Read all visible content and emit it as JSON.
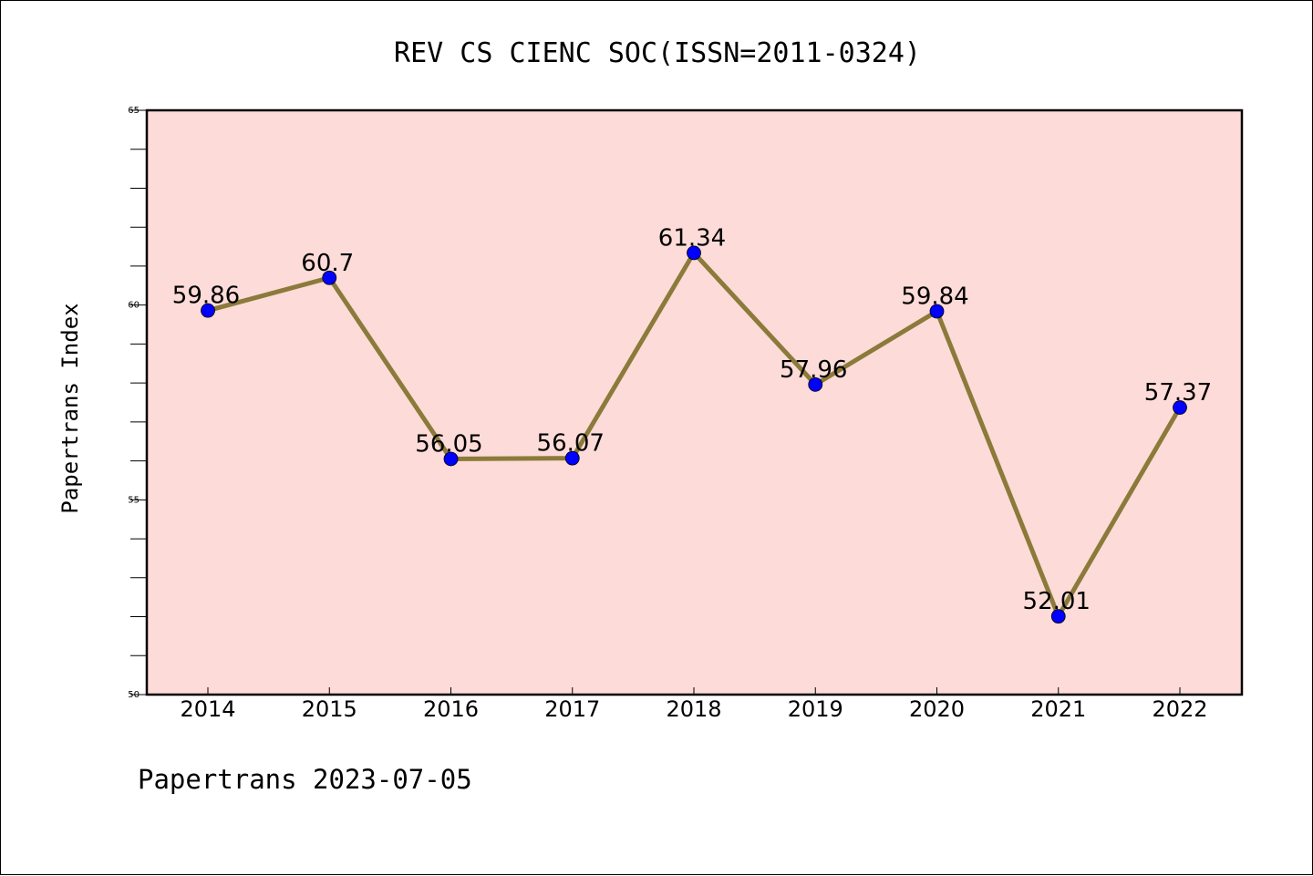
{
  "chart_data": {
    "type": "line",
    "title": "REV CS CIENC SOC(ISSN=2011-0324)",
    "ylabel": "Papertrans Index",
    "xlabel": "",
    "footer": "Papertrans 2023-07-05",
    "categories": [
      "2014",
      "2015",
      "2016",
      "2017",
      "2018",
      "2019",
      "2020",
      "2021",
      "2022"
    ],
    "values": [
      59.86,
      60.7,
      56.05,
      56.07,
      61.34,
      57.96,
      59.84,
      52.01,
      57.37
    ],
    "data_labels": [
      "59.86",
      "60.7",
      "56.05",
      "56.07",
      "61.34",
      "57.96",
      "59.84",
      "52.01",
      "57.37"
    ],
    "ylim": [
      50,
      65
    ],
    "yticks": [
      "50",
      "55",
      "60",
      "65"
    ],
    "grid": false,
    "legend": "none",
    "colors": {
      "plot_background": "#fddbd8",
      "line": "#8b7a3a",
      "marker": "#0000ff"
    }
  }
}
